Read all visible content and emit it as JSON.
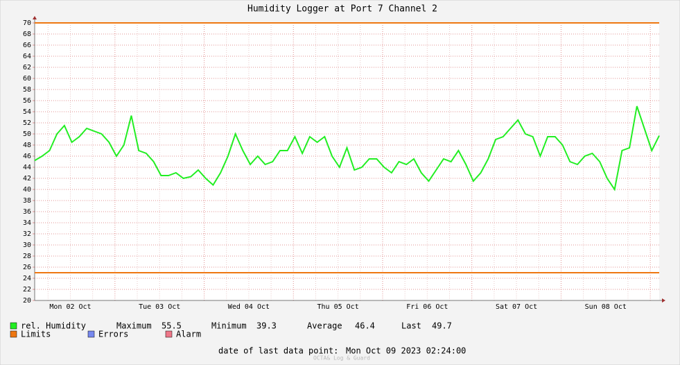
{
  "chart_data": {
    "type": "line",
    "title": "Humidity Logger at Port 7 Channel 2",
    "x": [
      2.4,
      4.4,
      6.4,
      8.4,
      10.4,
      12.4,
      14.4,
      16.4,
      18.4,
      20.4,
      22.4,
      24.4,
      26.4,
      28.4,
      30.4,
      32.4,
      34.4,
      36.4,
      38.4,
      40.4,
      42.4,
      44.4,
      46.4,
      48.4,
      50.4,
      52.4,
      54.4,
      56.4,
      58.4,
      60.4,
      62.4,
      64.4,
      66.4,
      68.4,
      70.4,
      72.4,
      74.4,
      76.4,
      78.4,
      80.4,
      82.4,
      84.4,
      86.4,
      88.4,
      90.4,
      92.4,
      94.4,
      96.4,
      98.4,
      100.4,
      102.4,
      104.4,
      106.4,
      108.4,
      110.4,
      112.4,
      114.4,
      116.4,
      118.4,
      120.4,
      122.4,
      124.4,
      126.4,
      128.4,
      130.4,
      132.4,
      134.4,
      136.4,
      138.4,
      140.4,
      142.4,
      144.4,
      146.4,
      148.4,
      150.4,
      152.4,
      154.4,
      156.4,
      158.4,
      160.4,
      162.4,
      164.4,
      166.4,
      168.4,
      170.4
    ],
    "series": [
      {
        "name": "rel. Humidity",
        "color": "#22ee22",
        "values": [
          45.2,
          46,
          47,
          50,
          51.5,
          48.5,
          49.5,
          51,
          50.5,
          50,
          48.5,
          46,
          48,
          53.3,
          47,
          46.5,
          45,
          42.5,
          42.5,
          43,
          42,
          42.3,
          43.5,
          42,
          40.8,
          43,
          46,
          50,
          47,
          44.5,
          46,
          44.5,
          45,
          47,
          47,
          49.5,
          46.5,
          49.5,
          48.5,
          49.5,
          46,
          44,
          47.5,
          43.5,
          44,
          45.5,
          45.5,
          44,
          43,
          45,
          44.5,
          45.5,
          43,
          41.5,
          43.5,
          45.5,
          45,
          47,
          44.5,
          41.5,
          43,
          45.5,
          49,
          49.5,
          51,
          52.5,
          50,
          49.5,
          46,
          49.5,
          49.5,
          48,
          45,
          44.5,
          46,
          46.5,
          45,
          42,
          40,
          47,
          47.5,
          55,
          51,
          47,
          49.7
        ]
      }
    ],
    "limits": {
      "name": "Limits",
      "color": "#ee7711",
      "values": [
        70,
        25
      ]
    },
    "legend_extra": [
      {
        "name": "Errors",
        "color": "#7788ee"
      },
      {
        "name": "Alarm",
        "color": "#ee7788"
      }
    ],
    "xlim": [
      2.4,
      170.4
    ],
    "xticks": [
      {
        "value": 12,
        "label": "Mon 02 Oct"
      },
      {
        "value": 36,
        "label": "Tue 03 Oct"
      },
      {
        "value": 60,
        "label": "Wed 04 Oct"
      },
      {
        "value": 84,
        "label": "Thu 05 Oct"
      },
      {
        "value": 108,
        "label": "Fri 06 Oct"
      },
      {
        "value": 132,
        "label": "Sat 07 Oct"
      },
      {
        "value": 156,
        "label": "Sun 08 Oct"
      }
    ],
    "xgrid_major": [
      24,
      48,
      72,
      96,
      120,
      144,
      168
    ],
    "xgrid_minor": [
      6,
      12,
      18,
      30,
      36,
      42,
      54,
      60,
      66,
      78,
      84,
      90,
      102,
      108,
      114,
      126,
      132,
      138,
      150,
      156,
      162
    ],
    "ylim": [
      20,
      70
    ],
    "yticks": [
      20,
      22,
      24,
      26,
      28,
      30,
      32,
      34,
      36,
      38,
      40,
      42,
      44,
      46,
      48,
      50,
      52,
      54,
      56,
      58,
      60,
      62,
      64,
      66,
      68,
      70
    ],
    "grid": true,
    "stats": [
      {
        "label": "Maximum",
        "value": "55.5"
      },
      {
        "label": "Minimum",
        "value": "39.3"
      },
      {
        "label": "Average",
        "value": "46.4"
      },
      {
        "label": "Last",
        "value": "49.7"
      }
    ],
    "last_point_label": "date of last data point:",
    "last_point": "Mon Oct 09 2023 02:24:00",
    "footer": "OCTA& Log & Guard"
  }
}
